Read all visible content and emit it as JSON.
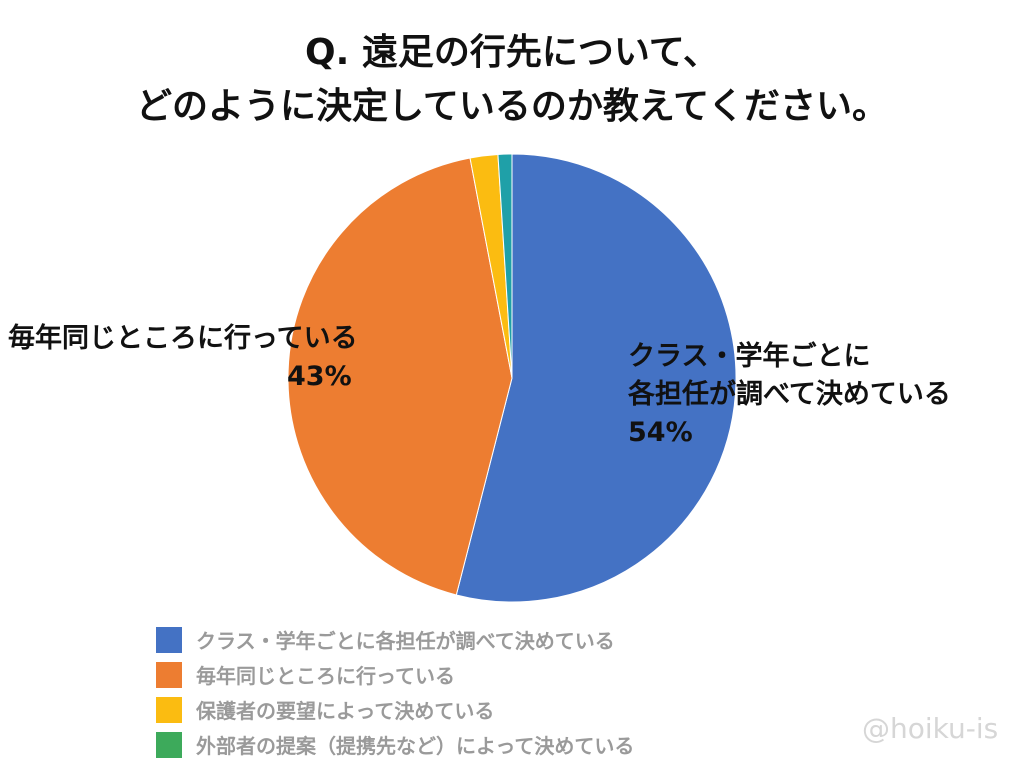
{
  "title": {
    "line1": "Q. 遠足の行先について、",
    "line2": "どのように決定しているのか教えてください。"
  },
  "labels": {
    "left": {
      "line1": "毎年同じところに行っている",
      "line2": "43%"
    },
    "right": {
      "line1": "クラス・学年ごとに",
      "line2": "各担任が調べて決めている",
      "line3": "54%"
    }
  },
  "legend": [
    {
      "label": "クラス・学年ごとに各担任が調べて決めている",
      "color": "#4472C4"
    },
    {
      "label": "毎年同じところに行っている",
      "color": "#ED7D31"
    },
    {
      "label": "保護者の要望によって決めている",
      "color": "#FBBC11"
    },
    {
      "label": "外部者の提案（提携先など）によって決めている",
      "color": "#3DAA5B"
    }
  ],
  "watermark": "@hoiku-is",
  "chart_data": {
    "type": "pie",
    "title": "Q. 遠足の行先について、どのように決定しているのか教えてください。",
    "categories": [
      "クラス・学年ごとに各担任が調べて決めている",
      "毎年同じところに行っている",
      "保護者の要望によって決めている",
      "外部者の提案（提携先など）によって決めている"
    ],
    "values": [
      54,
      43,
      2,
      1
    ],
    "units": "%",
    "colors": [
      "#4472C4",
      "#ED7D31",
      "#FBBC11",
      "#1FA0A8"
    ],
    "data_labels": [
      "54%",
      "43%",
      "",
      ""
    ],
    "legend_position": "bottom",
    "start_angle": "12 o'clock, clockwise"
  }
}
